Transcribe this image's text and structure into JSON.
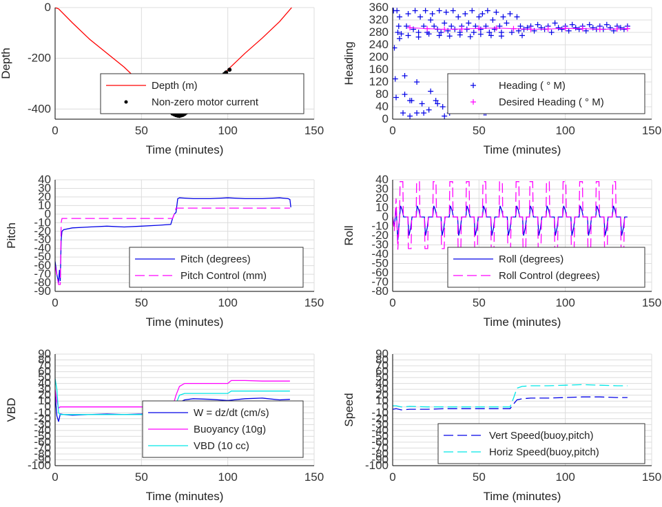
{
  "colors": {
    "blue": "#0000e6",
    "red": "#ff0000",
    "magenta": "#ff00ff",
    "cyan": "#00e6e6",
    "black": "#000000"
  },
  "chart_data": [
    {
      "id": "depth",
      "type": "line",
      "xlabel": "Time (minutes)",
      "ylabel": "Depth",
      "xlim": [
        0,
        150
      ],
      "ylim": [
        -440,
        0
      ],
      "xticks": [
        0,
        50,
        100,
        150
      ],
      "yticks": [
        -400,
        -200,
        0
      ],
      "grid": true,
      "legend_position": "bottom-right",
      "series": [
        {
          "name": "Depth (m)",
          "color": "#ff0000",
          "style": "solid",
          "x": [
            0,
            2,
            10,
            20,
            30,
            40,
            50,
            60,
            65,
            70,
            75,
            80,
            90,
            100,
            110,
            120,
            130,
            137
          ],
          "y": [
            0,
            -5,
            -60,
            -125,
            -180,
            -235,
            -300,
            -370,
            -405,
            -425,
            -420,
            -390,
            -320,
            -245,
            -180,
            -120,
            -55,
            0
          ]
        },
        {
          "name": "Non-zero motor current",
          "color": "#000000",
          "style": "dots",
          "x": [
            68,
            69,
            70,
            71,
            72,
            73,
            74,
            75,
            76,
            98,
            99,
            101
          ],
          "y": [
            -418,
            -421,
            -424,
            -426,
            -427,
            -425,
            -423,
            -419,
            -414,
            -262,
            -256,
            -245
          ]
        }
      ]
    },
    {
      "id": "heading",
      "type": "scatter",
      "xlabel": "Time (minutes)",
      "ylabel": "Heading",
      "xlim": [
        0,
        150
      ],
      "ylim": [
        0,
        360
      ],
      "xticks": [
        0,
        50,
        100,
        150
      ],
      "yticks": [
        0,
        40,
        80,
        120,
        160,
        200,
        240,
        280,
        320,
        360
      ],
      "grid": true,
      "legend_position": "bottom-right",
      "series": [
        {
          "name": "Heading (   ° M)",
          "color": "#0000e6",
          "style": "plus",
          "x": [
            0.5,
            1,
            1.5,
            2,
            2.5,
            3,
            3.5,
            4,
            5,
            6,
            7,
            8,
            9,
            10,
            11,
            12,
            13,
            14,
            15,
            16,
            17,
            18,
            19,
            20,
            21,
            22,
            23,
            24,
            25,
            26,
            27,
            28,
            29,
            30,
            31,
            32,
            33,
            34,
            35,
            36,
            37,
            38,
            39,
            40,
            41,
            42,
            43,
            44,
            45,
            46,
            47,
            48,
            49,
            50,
            51,
            52,
            53,
            54,
            55,
            56,
            57,
            58,
            59,
            60,
            61,
            62,
            63,
            64,
            65,
            66,
            67,
            68,
            69,
            70,
            71,
            72,
            73,
            74,
            75,
            76,
            78,
            80,
            82,
            84,
            86,
            88,
            90,
            92,
            94,
            96,
            98,
            100,
            102,
            104,
            106,
            108,
            110,
            112,
            114,
            116,
            118,
            120,
            122,
            124,
            126,
            128,
            130,
            132,
            134,
            136,
            7,
            10,
            14,
            18,
            22,
            26,
            30,
            34,
            38,
            42,
            46,
            50,
            54,
            58,
            62,
            66,
            70,
            4,
            9,
            15,
            21,
            27,
            33,
            39,
            45,
            51,
            57,
            63
          ],
          "y": [
            350,
            230,
            130,
            70,
            350,
            280,
            300,
            330,
            275,
            20,
            80,
            300,
            340,
            10,
            60,
            290,
            350,
            20,
            280,
            330,
            50,
            300,
            350,
            280,
            30,
            320,
            340,
            300,
            60,
            290,
            350,
            280,
            40,
            310,
            345,
            285,
            20,
            300,
            350,
            290,
            70,
            330,
            280,
            300,
            40,
            340,
            290,
            310,
            30,
            350,
            280,
            300,
            60,
            330,
            290,
            340,
            20,
            300,
            350,
            280,
            50,
            320,
            290,
            345,
            80,
            300,
            280,
            330,
            40,
            310,
            100,
            340,
            280,
            120,
            60,
            330,
            285,
            300,
            270,
            290,
            295,
            300,
            285,
            305,
            295,
            290,
            300,
            280,
            310,
            295,
            290,
            300,
            285,
            305,
            295,
            290,
            300,
            285,
            305,
            295,
            290,
            300,
            290,
            305,
            295,
            285,
            300,
            295,
            290,
            300,
            140,
            60,
            120,
            20,
            90,
            50,
            10,
            70,
            30,
            100,
            40,
            80,
            20,
            60,
            110,
            30,
            90,
            260,
            270,
            265,
            275,
            270,
            268,
            272,
            266,
            274,
            270,
            268
          ]
        },
        {
          "name": "Desired Heading (     ° M)",
          "color": "#ff00ff",
          "style": "plus",
          "x": [
            10,
            20,
            30,
            40,
            50,
            60,
            70,
            80,
            90,
            100,
            110,
            120,
            130,
            136
          ],
          "y": [
            295,
            292,
            290,
            291,
            293,
            294,
            292,
            290,
            291,
            293,
            292,
            290,
            291,
            292
          ]
        }
      ]
    },
    {
      "id": "pitch",
      "type": "line",
      "xlabel": "Time (minutes)",
      "ylabel": "Pitch",
      "xlim": [
        0,
        150
      ],
      "ylim": [
        -90,
        40
      ],
      "xticks": [
        0,
        50,
        100,
        150
      ],
      "yticks": [
        -90,
        -80,
        -70,
        -60,
        -50,
        -40,
        -30,
        -20,
        -10,
        0,
        10,
        20,
        30,
        40
      ],
      "grid": true,
      "legend_position": "bottom-right",
      "series": [
        {
          "name": "Pitch (degrees)",
          "color": "#0000e6",
          "style": "solid",
          "x": [
            0,
            1,
            2,
            2.5,
            3,
            3.5,
            4,
            5,
            10,
            20,
            30,
            40,
            50,
            60,
            67,
            68,
            69,
            70,
            71,
            72,
            80,
            90,
            100,
            110,
            120,
            130,
            135,
            136,
            136.5
          ],
          "y": [
            -55,
            -70,
            -80,
            -65,
            -78,
            -30,
            -20,
            -18,
            -16,
            -15,
            -14,
            -15,
            -14,
            -13,
            -12,
            -5,
            0,
            2,
            18,
            19,
            18,
            18,
            19,
            18,
            18,
            19,
            18,
            17,
            8
          ]
        },
        {
          "name": "Pitch Control (mm)",
          "color": "#ff00ff",
          "style": "dashed",
          "x": [
            0,
            2,
            3,
            3.5,
            4,
            68,
            69,
            70,
            136
          ],
          "y": [
            -60,
            -82,
            -82,
            -10,
            -5,
            -5,
            0,
            7,
            7
          ]
        }
      ]
    },
    {
      "id": "roll",
      "type": "line",
      "xlabel": "Time (minutes)",
      "ylabel": "Roll",
      "xlim": [
        0,
        150
      ],
      "ylim": [
        -80,
        40
      ],
      "xticks": [
        0,
        50,
        100,
        150
      ],
      "yticks": [
        -80,
        -70,
        -60,
        -50,
        -40,
        -30,
        -20,
        -10,
        0,
        10,
        20,
        30,
        40
      ],
      "grid": true,
      "legend_position": "bottom-right",
      "series": [
        {
          "name": "Roll (degrees)",
          "color": "#0000e6",
          "style": "solid"
        },
        {
          "name": "Roll Control (degrees)",
          "color": "#ff00ff",
          "style": "dashed"
        }
      ]
    },
    {
      "id": "vbd",
      "type": "line",
      "xlabel": "Time (minutes)",
      "ylabel": "VBD",
      "xlim": [
        0,
        150
      ],
      "ylim": [
        -100,
        90
      ],
      "xticks": [
        0,
        50,
        100,
        150
      ],
      "yticks": [
        -100,
        -90,
        -80,
        -70,
        -60,
        -50,
        -40,
        -30,
        -20,
        -10,
        0,
        10,
        20,
        30,
        40,
        50,
        60,
        70,
        80,
        90
      ],
      "grid": true,
      "legend_position": "bottom-right",
      "series": [
        {
          "name": "W = dz/dt (cm/s)",
          "color": "#0000e6",
          "style": "solid",
          "x": [
            0,
            1,
            2,
            3,
            5,
            10,
            20,
            30,
            40,
            50,
            60,
            65,
            70,
            72,
            75,
            80,
            90,
            100,
            110,
            120,
            130,
            136
          ],
          "y": [
            20,
            -15,
            -25,
            -12,
            -13,
            -14,
            -13,
            -12,
            -13,
            -12,
            -10,
            -9,
            0,
            8,
            12,
            14,
            13,
            11,
            14,
            15,
            12,
            13
          ]
        },
        {
          "name": "Buoyancy (10g)",
          "color": "#ff00ff",
          "style": "solid",
          "x": [
            0,
            1,
            2,
            3,
            4,
            10,
            20,
            30,
            40,
            50,
            60,
            68,
            70,
            72,
            75,
            90,
            100,
            102,
            110,
            120,
            130,
            136
          ],
          "y": [
            30,
            10,
            -2,
            0,
            0,
            0,
            0,
            0,
            0,
            0,
            0,
            0,
            20,
            35,
            40,
            40,
            40,
            45,
            45,
            44,
            44,
            44
          ]
        },
        {
          "name": "VBD (10 cc)",
          "color": "#00e6e6",
          "style": "solid",
          "x": [
            0,
            1,
            2,
            3,
            4,
            10,
            20,
            30,
            40,
            50,
            60,
            68,
            70,
            72,
            75,
            90,
            100,
            102,
            110,
            120,
            130,
            136
          ],
          "y": [
            48,
            30,
            -10,
            -13,
            -13,
            -13,
            -13,
            -13,
            -13,
            -13,
            -13,
            -13,
            5,
            20,
            23,
            23,
            23,
            27,
            27,
            27,
            27,
            27
          ]
        }
      ]
    },
    {
      "id": "speed",
      "type": "line",
      "xlabel": "Time (minutes)",
      "ylabel": "Speed",
      "xlim": [
        0,
        150
      ],
      "ylim": [
        -100,
        90
      ],
      "xticks": [
        0,
        50,
        100,
        150
      ],
      "yticks": [
        -100,
        -90,
        -80,
        -70,
        -60,
        -50,
        -40,
        -30,
        -20,
        -10,
        0,
        10,
        20,
        30,
        40,
        50,
        60,
        70,
        80,
        90
      ],
      "grid": true,
      "legend_position": "bottom-right",
      "series": [
        {
          "name": "Vert Speed(buoy,pitch)",
          "color": "#0000e6",
          "style": "dashed",
          "x": [
            0,
            2,
            5,
            10,
            20,
            30,
            40,
            50,
            60,
            68,
            70,
            72,
            75,
            80,
            90,
            100,
            110,
            120,
            130,
            136
          ],
          "y": [
            -4,
            -3,
            -5,
            -4,
            -4,
            -3,
            -3,
            -3,
            -3,
            -3,
            5,
            12,
            14,
            15,
            15,
            16,
            17,
            17,
            16,
            16
          ]
        },
        {
          "name": "Horiz Speed(buoy,pitch)",
          "color": "#00e6e6",
          "style": "dashed",
          "x": [
            0,
            2,
            5,
            10,
            20,
            30,
            40,
            50,
            60,
            68,
            70,
            72,
            75,
            80,
            90,
            100,
            110,
            120,
            130,
            136
          ],
          "y": [
            2,
            2,
            0,
            1,
            0,
            0,
            0,
            0,
            0,
            0,
            15,
            32,
            35,
            36,
            36,
            37,
            38,
            37,
            36,
            36
          ]
        }
      ]
    }
  ]
}
